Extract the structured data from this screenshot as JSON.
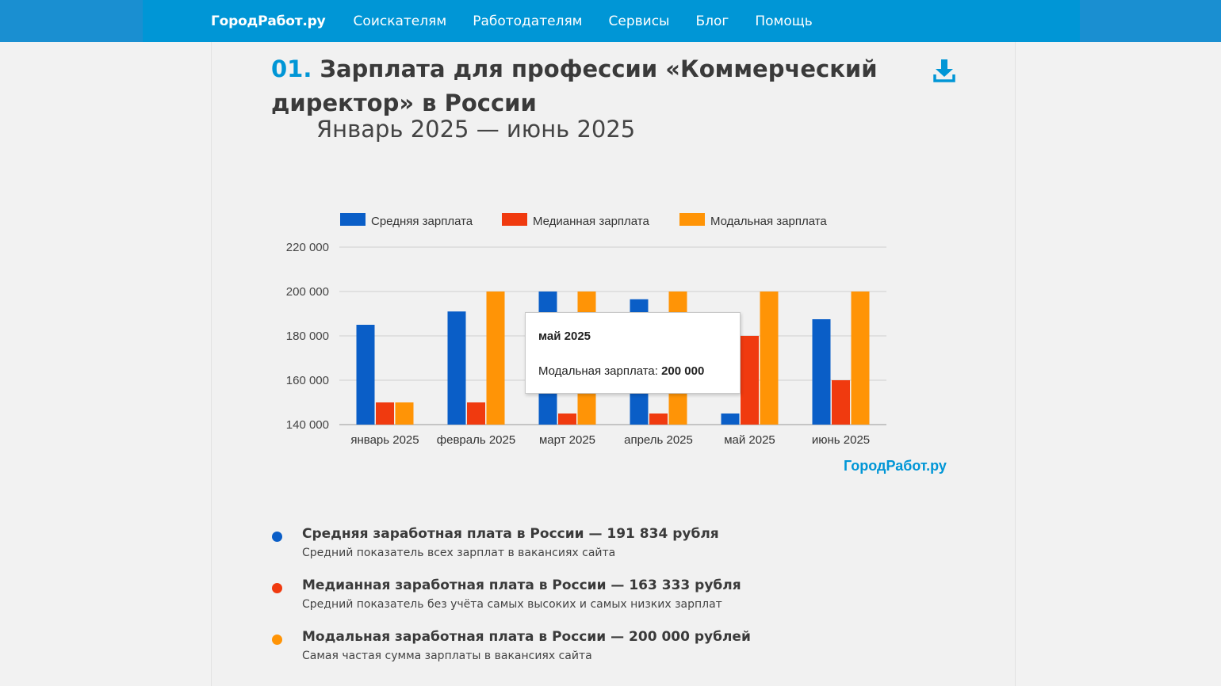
{
  "nav": {
    "logo": "ГородРабот.ру",
    "items": [
      "Соискателям",
      "Работодателям",
      "Сервисы",
      "Блог",
      "Помощь"
    ]
  },
  "section": {
    "number": "01.",
    "title_line1": "Зарплата для профессии «Коммерческий",
    "title_line2": "директор» в России",
    "period": "Январь 2025 — июнь 2025",
    "download_icon": "download-icon"
  },
  "colors": {
    "nav_bg": "#0096d6",
    "average": "#0a5ec7",
    "median": "#f03a0f",
    "modal": "#ff9406"
  },
  "chart_data": {
    "type": "bar",
    "categories": [
      "январь 2025",
      "февраль 2025",
      "март 2025",
      "апрель 2025",
      "май 2025",
      "июнь 2025"
    ],
    "series": [
      {
        "name": "Средняя зарплата",
        "color": "#0a5ec7",
        "values": [
          185000,
          191000,
          200000,
          196500,
          145000,
          187500
        ]
      },
      {
        "name": "Медианная зарплата",
        "color": "#f03a0f",
        "values": [
          150000,
          150000,
          145000,
          145000,
          180000,
          160000
        ]
      },
      {
        "name": "Модальная зарплата",
        "color": "#ff9406",
        "values": [
          150000,
          200000,
          200000,
          200000,
          200000,
          200000
        ]
      }
    ],
    "ylim": [
      140000,
      220000
    ],
    "yticks": [
      "140 000",
      "160 000",
      "180 000",
      "200 000",
      "220 000"
    ],
    "legend_position": "top",
    "grid": true
  },
  "tooltip": {
    "title": "май 2025",
    "label": "Модальная зарплата: ",
    "value": "200 000"
  },
  "watermark": "ГородРабот.ру",
  "stats": [
    {
      "title": "Средняя заработная плата в России — 191 834 рубля",
      "desc": "Средний показатель всех зарплат в вакансиях сайта",
      "color": "#0a5ec7"
    },
    {
      "title": "Медианная заработная плата в России — 163 333 рубля",
      "desc": "Средний показатель без учёта самых высоких и самых низких зарплат",
      "color": "#f03a0f"
    },
    {
      "title": "Модальная заработная плата в России — 200 000 рублей",
      "desc": "Самая частая сумма зарплаты в вакансиях сайта",
      "color": "#ff9406"
    }
  ]
}
